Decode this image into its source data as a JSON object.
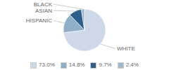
{
  "chart_data": {
    "type": "pie",
    "categories": [
      "WHITE",
      "HISPANIC",
      "ASIAN",
      "BLACK"
    ],
    "values": [
      73.0,
      14.8,
      9.7,
      2.4
    ],
    "value_labels": [
      "73.0%",
      "14.8%",
      "9.7%",
      "2.4%"
    ],
    "colors": [
      "#cdd9e8",
      "#8fafc8",
      "#2e5f8a",
      "#a0b8cc"
    ],
    "legend": "bottom"
  }
}
